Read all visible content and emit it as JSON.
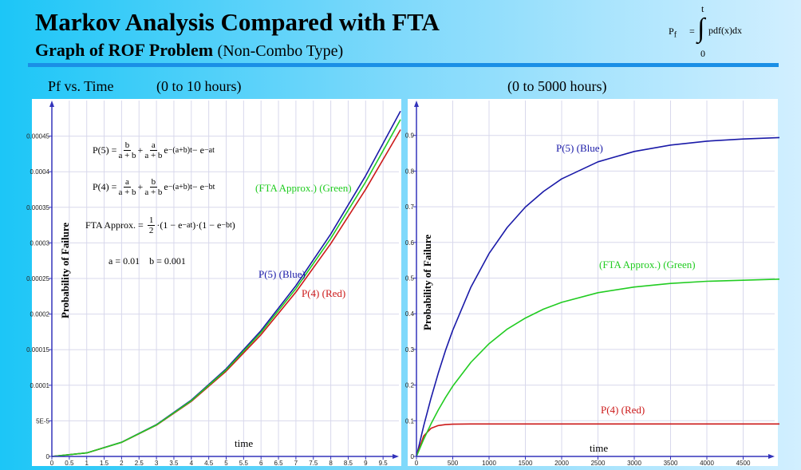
{
  "header": {
    "title": "Markov Analysis  Compared with FTA",
    "subtitle": "Graph of ROF Problem",
    "subtitle_note": "(Non-Combo Type)",
    "formula": {
      "lhs": "P",
      "lhs_sub": "f",
      "eq": "=",
      "upper": "t",
      "lower": "0",
      "integrand": "pdf(x)dx"
    }
  },
  "captions": {
    "left_a": "Pf vs. Time",
    "left_b": "(0 to 10 hours)",
    "right": "(0 to 5000 hours)"
  },
  "formulas": {
    "p5_lhs": "P(5) =",
    "p5_f1n": "b",
    "p5_f1d": "a + b",
    "p5_f2n": "a",
    "p5_f2d": "a + b",
    "p5_e1": "e",
    "p5_x1": "−(a+b)t",
    "p5_e2": " − e",
    "p5_x2": "−at",
    "p4_lhs": "P(4) =",
    "p4_f1n": "a",
    "p4_f1d": "a + b",
    "p4_f2n": "b",
    "p4_f2d": "a + b",
    "p4_e1": "e",
    "p4_x1": "−(a+b)t",
    "p4_e2": " − e",
    "p4_x2": "−bt",
    "fta_lhs": "FTA Approx. =",
    "fta_n": "1",
    "fta_d": "2",
    "fta_a": "·(1 − e",
    "fta_ax": "−at",
    "fta_b": ")·(1 − e",
    "fta_bx": "−bt",
    "fta_c": ")",
    "params": "a = 0.01    b = 0.001"
  },
  "colors": {
    "blue": "#1a1aa8",
    "red": "#cc1a1a",
    "green": "#22cc22",
    "axis": "#3333bb",
    "grid": "#d8d8ec"
  },
  "chart_data": [
    {
      "type": "line",
      "xlabel": "time",
      "ylabel": "Probability of Failure",
      "xlim": [
        0,
        10
      ],
      "ylim": [
        0,
        0.0005
      ],
      "grid": true,
      "x_ticks": [
        "0",
        "0.5",
        "1",
        "1.5",
        "2",
        "2.5",
        "3",
        "3.5",
        "4",
        "4.5",
        "5",
        "5.5",
        "6",
        "6.5",
        "7",
        "7.5",
        "8",
        "8.5",
        "9",
        "9.5"
      ],
      "y_ticks": [
        "0",
        "5E-5",
        "0.0001",
        "0.00015",
        "0.0002",
        "0.00025",
        "0.0003",
        "0.00035",
        "0.0004",
        "0.00045"
      ],
      "x": [
        0,
        1,
        2,
        3,
        4,
        5,
        6,
        7,
        8,
        9,
        10
      ],
      "series": [
        {
          "name": "P(5) (Blue)",
          "color": "blue",
          "values": [
            0,
            4.98e-06,
            1.99e-05,
            4.47e-05,
            7.91e-05,
            0.0001231,
            0.0001768,
            0.0002399,
            0.0003124,
            0.0003943,
            0.0004851
          ]
        },
        {
          "name": "P(4) (Red)",
          "color": "red",
          "values": [
            0,
            4.95e-06,
            1.97e-05,
            4.39e-05,
            7.74e-05,
            0.0001198,
            0.0001711,
            0.0002309,
            0.000299,
            0.0003752,
            0.0004591
          ]
        },
        {
          "name": "(FTA Approx.) (Green)",
          "color": "green",
          "values": [
            0,
            4.97e-06,
            1.98e-05,
            4.43e-05,
            7.83e-05,
            0.0001216,
            0.0001742,
            0.0002358,
            0.0003063,
            0.0003856,
            0.0004733
          ]
        }
      ],
      "labels": {
        "blue": "P(5) (Blue)",
        "red": "P(4) (Red)",
        "green": "(FTA Approx.) (Green)",
        "xlabel": "time",
        "ylabel": "Probability of Failure"
      }
    },
    {
      "type": "line",
      "xlabel": "time",
      "ylabel": "Probability of Failure",
      "xlim": [
        0,
        5000
      ],
      "ylim": [
        0,
        1
      ],
      "grid": true,
      "x_ticks": [
        "0",
        "500",
        "1000",
        "1500",
        "2000",
        "2500",
        "3000",
        "3500",
        "4000",
        "4500"
      ],
      "y_ticks": [
        "0",
        "0.1",
        "0.2",
        "0.3",
        "0.4",
        "0.5",
        "0.6",
        "0.7",
        "0.8",
        "0.9"
      ],
      "x": [
        0,
        100,
        200,
        300,
        400,
        500,
        750,
        1000,
        1250,
        1500,
        1750,
        2000,
        2500,
        3000,
        3500,
        4000,
        4500,
        5000
      ],
      "series": [
        {
          "name": "P(5) (Blue)",
          "color": "blue",
          "values": [
            0,
            0.086,
            0.163,
            0.233,
            0.297,
            0.354,
            0.475,
            0.569,
            0.642,
            0.699,
            0.743,
            0.778,
            0.826,
            0.855,
            0.873,
            0.884,
            0.89,
            0.894
          ]
        },
        {
          "name": "P(4) (Red)",
          "color": "red",
          "values": [
            0,
            0.0575,
            0.0787,
            0.0865,
            0.0893,
            0.0904,
            0.091,
            0.091,
            0.091,
            0.091,
            0.091,
            0.091,
            0.091,
            0.091,
            0.091,
            0.091,
            0.091,
            0.091
          ]
        },
        {
          "name": "(FTA Approx.) (Green)",
          "color": "green",
          "values": [
            0,
            0.048,
            0.091,
            0.13,
            0.165,
            0.197,
            0.264,
            0.316,
            0.357,
            0.388,
            0.413,
            0.432,
            0.459,
            0.475,
            0.485,
            0.491,
            0.494,
            0.497
          ]
        }
      ],
      "labels": {
        "blue": "P(5) (Blue)",
        "red": "P(4) (Red)",
        "green": "(FTA Approx.) (Green)",
        "xlabel": "time",
        "ylabel": "Probability of Failure"
      }
    }
  ]
}
